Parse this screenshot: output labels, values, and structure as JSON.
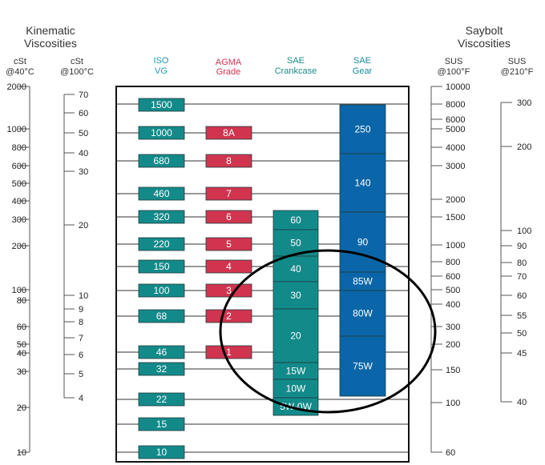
{
  "headers": {
    "left_title_1": "Kinematic",
    "left_title_2": "Viscosities",
    "right_title_1": "Saybolt",
    "right_title_2": "Viscosities",
    "cst40_1": "cSt",
    "cst40_2": "@40°C",
    "cst100_1": "cSt",
    "cst100_2": "@100°C",
    "iso_1": "ISO",
    "iso_2": "VG",
    "agma_1": "AGMA",
    "agma_2": "Grade",
    "saec_1": "SAE",
    "saec_2": "Crankcase",
    "saeg_1": "SAE",
    "saeg_2": "Gear",
    "sus100_1": "SUS",
    "sus100_2": "@100°F",
    "sus210_1": "SUS",
    "sus210_2": "@210°F"
  },
  "colors": {
    "teal": "#138a8a",
    "red": "#d1344f",
    "blue": "#0a66a8",
    "iso_header": "#1a9ab0",
    "agma_header": "#d1344f",
    "saec_header": "#1a8a8a",
    "saeg_header": "#1a8a9a",
    "ellipse": "#000000"
  },
  "scales": {
    "cst40": [
      "2000",
      "1000",
      "800",
      "600",
      "500",
      "400",
      "300",
      "200",
      "100",
      "80",
      "60",
      "50",
      "40",
      "30",
      "20",
      "10"
    ],
    "cst100": [
      "70",
      "60",
      "50",
      "40",
      "30",
      "20",
      "10",
      "9",
      "8",
      "7",
      "6",
      "5",
      "4"
    ],
    "sus100": [
      "10000",
      "8000",
      "6000",
      "5000",
      "4000",
      "3000",
      "2000",
      "1500",
      "1000",
      "800",
      "600",
      "500",
      "400",
      "300",
      "200",
      "150",
      "100",
      "60"
    ],
    "sus210": [
      "300",
      "200",
      "100",
      "90",
      "80",
      "70",
      "60",
      "55",
      "50",
      "45",
      "40"
    ]
  },
  "iso_grades": [
    "1500",
    "1000",
    "680",
    "460",
    "320",
    "220",
    "150",
    "100",
    "68",
    "46",
    "32",
    "22",
    "15",
    "10"
  ],
  "agma_grades": [
    "8A",
    "8",
    "7",
    "6",
    "5",
    "4",
    "3",
    "2",
    "1"
  ],
  "sae_crankcase": [
    "60",
    "50",
    "40",
    "30",
    "20",
    "15W",
    "10W",
    "5W-0W"
  ],
  "sae_gear": [
    "250",
    "140",
    "90",
    "85W",
    "80W",
    "75W"
  ]
}
